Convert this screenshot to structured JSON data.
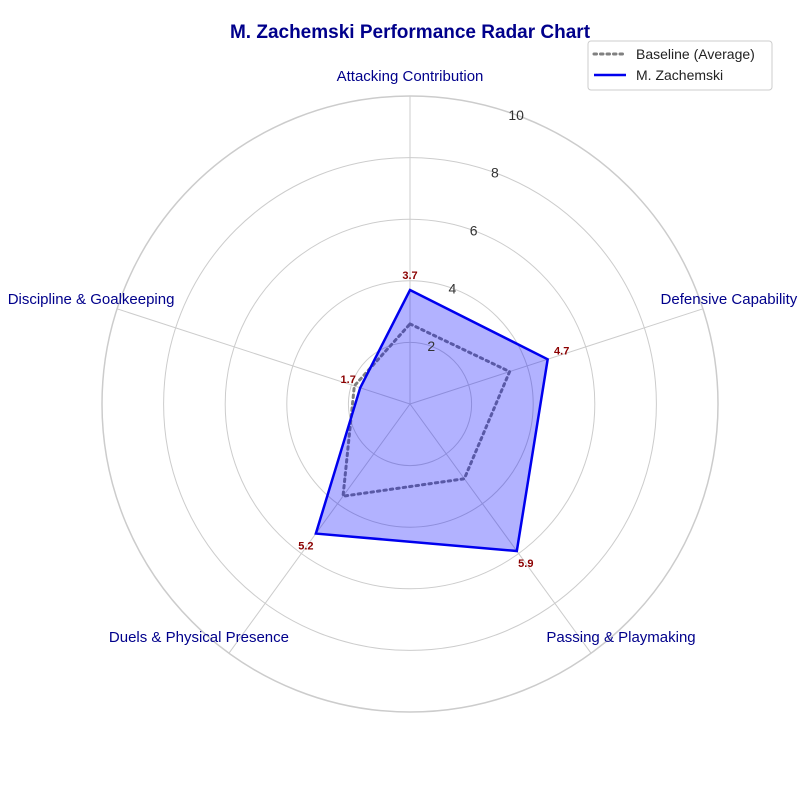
{
  "chart_data": {
    "type": "radar",
    "title": "M. Zachemski Performance Radar Chart",
    "categories": [
      "Attacking Contribution",
      "Defensive Capability",
      "Passing & Playmaking",
      "Duels & Physical Presence",
      "Discipline & Goalkeeping"
    ],
    "rlim": [
      0,
      10
    ],
    "r_ticks": [
      2,
      4,
      6,
      8,
      10
    ],
    "grid": true,
    "legend": {
      "placement": "top-right"
    },
    "series": [
      {
        "name": "Baseline (Average)",
        "values": [
          2.6,
          3.4,
          3.0,
          3.7,
          1.9
        ],
        "style": "dotted",
        "color": "#808080"
      },
      {
        "name": "M. Zachemski",
        "values": [
          3.7,
          4.7,
          5.9,
          5.2,
          1.7
        ],
        "style": "solid",
        "color": "#0000ee",
        "fill": "#0000ff",
        "value_labels": [
          "3.7",
          "4.7",
          "5.9",
          "5.2",
          "1.7"
        ]
      }
    ]
  },
  "colors": {
    "title": "#00008b",
    "axis_label": "#00008b",
    "value_label": "#8b0000",
    "grid": "#cccccc"
  }
}
